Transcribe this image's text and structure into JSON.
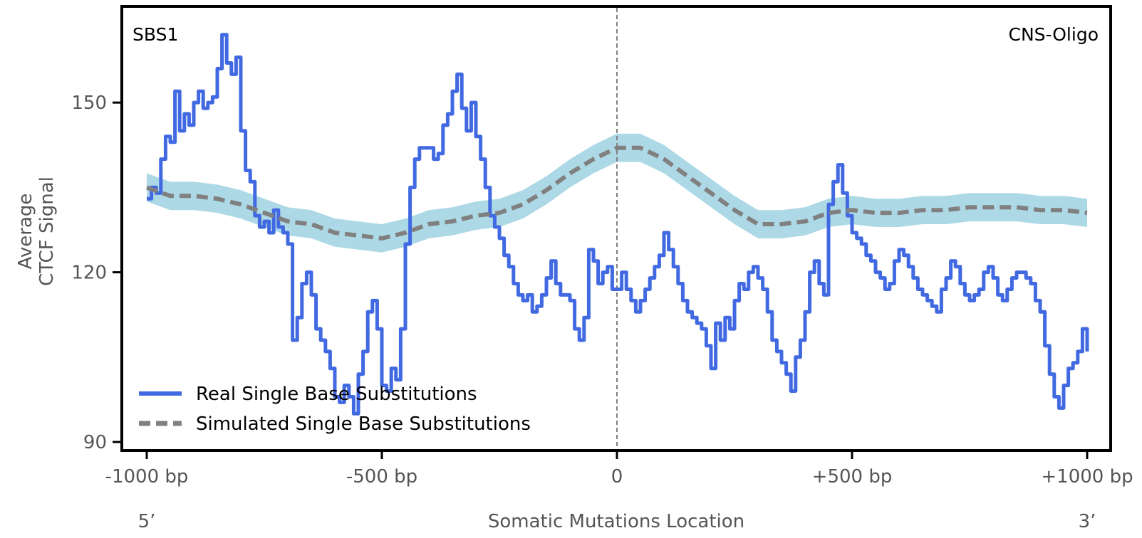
{
  "chart_data": {
    "type": "line",
    "xlabel": "Somatic Mutations Location",
    "ylabel_lines": [
      "Average",
      "CTCF Signal"
    ],
    "corner_left": "SBS1",
    "corner_right": "CNS-Oligo",
    "xlim": [
      -1000,
      1000
    ],
    "ylim": [
      88.5,
      167
    ],
    "xticks": [
      -1000,
      -500,
      0,
      500,
      1000
    ],
    "xtick_labels": [
      "-1000 bp",
      "-500 bp",
      "0",
      "+500 bp",
      "+1000 bp"
    ],
    "yticks": [
      90,
      120,
      150
    ],
    "ytick_labels": [
      "90",
      "120",
      "150"
    ],
    "end_labels": [
      "5’",
      "3’"
    ],
    "grid": false,
    "center_line_x": 0,
    "legend_position": "lower-left",
    "colors": {
      "real": "#4169e1",
      "simulated": "#808080",
      "band": "#add8e6",
      "center_line": "#808080"
    },
    "series": [
      {
        "name": "Real Single Base Substitutions",
        "style": "solid",
        "x": [
          -1000,
          -990,
          -980,
          -970,
          -960,
          -950,
          -940,
          -930,
          -920,
          -910,
          -900,
          -890,
          -880,
          -870,
          -860,
          -850,
          -840,
          -830,
          -820,
          -810,
          -800,
          -790,
          -780,
          -770,
          -760,
          -750,
          -740,
          -730,
          -720,
          -710,
          -700,
          -690,
          -680,
          -670,
          -660,
          -650,
          -640,
          -630,
          -620,
          -610,
          -600,
          -590,
          -580,
          -570,
          -560,
          -550,
          -540,
          -530,
          -520,
          -510,
          -500,
          -490,
          -480,
          -470,
          -460,
          -450,
          -440,
          -430,
          -420,
          -410,
          -400,
          -390,
          -380,
          -370,
          -360,
          -350,
          -340,
          -330,
          -320,
          -310,
          -300,
          -290,
          -280,
          -270,
          -260,
          -250,
          -240,
          -230,
          -220,
          -210,
          -200,
          -190,
          -180,
          -170,
          -160,
          -150,
          -140,
          -130,
          -120,
          -110,
          -100,
          -90,
          -80,
          -70,
          -60,
          -50,
          -40,
          -30,
          -20,
          -10,
          0,
          10,
          20,
          30,
          40,
          50,
          60,
          70,
          80,
          90,
          100,
          110,
          120,
          130,
          140,
          150,
          160,
          170,
          180,
          190,
          200,
          210,
          220,
          230,
          240,
          250,
          260,
          270,
          280,
          290,
          300,
          310,
          320,
          330,
          340,
          350,
          360,
          370,
          380,
          390,
          400,
          410,
          420,
          430,
          440,
          450,
          460,
          470,
          480,
          490,
          500,
          510,
          520,
          530,
          540,
          550,
          560,
          570,
          580,
          590,
          600,
          610,
          620,
          630,
          640,
          650,
          660,
          670,
          680,
          690,
          700,
          710,
          720,
          730,
          740,
          750,
          760,
          770,
          780,
          790,
          800,
          810,
          820,
          830,
          840,
          850,
          860,
          870,
          880,
          890,
          900,
          910,
          920,
          930,
          940,
          950,
          960,
          970,
          980,
          990,
          1000
        ],
        "y": [
          133,
          135,
          134,
          140,
          144,
          143,
          152,
          145,
          148,
          146,
          150,
          152,
          149,
          150,
          151,
          156,
          162,
          157,
          155,
          158,
          145,
          138,
          136,
          130,
          128,
          129,
          127,
          131,
          128,
          127,
          125,
          108,
          112,
          118,
          120,
          116,
          110,
          108,
          106,
          103,
          98,
          97,
          100,
          98,
          95,
          102,
          106,
          113,
          115,
          110,
          100,
          99,
          103,
          101,
          110,
          125,
          135,
          140,
          142,
          142,
          142,
          140,
          141,
          146,
          148,
          152,
          155,
          149,
          145,
          150,
          144,
          140,
          135,
          130,
          128,
          126,
          123,
          121,
          118,
          116,
          115,
          116,
          113,
          114,
          116,
          119,
          122,
          118,
          116,
          116,
          115,
          110,
          108,
          112,
          124,
          122,
          118,
          120,
          121,
          117,
          117,
          120,
          117,
          115,
          113,
          115,
          117,
          119,
          121,
          123,
          127,
          124,
          121,
          118,
          115,
          113,
          112,
          111,
          110,
          107,
          103,
          111,
          108,
          112,
          110,
          115,
          118,
          117,
          120,
          121,
          119,
          117,
          113,
          108,
          106,
          104,
          102,
          99,
          105,
          108,
          113,
          120,
          122,
          118,
          116,
          132,
          136,
          139,
          134,
          130,
          127,
          126,
          125,
          123,
          122,
          120,
          119,
          117,
          118,
          122,
          124,
          123,
          121,
          119,
          117,
          116,
          115,
          114,
          113,
          117,
          119,
          122,
          121,
          118,
          116,
          115,
          116,
          117,
          120,
          121,
          119,
          116,
          115,
          117,
          119,
          120,
          120,
          119,
          118,
          115,
          113,
          107,
          102,
          98,
          96,
          100,
          103,
          104,
          106,
          110,
          106
        ]
      },
      {
        "name": "Simulated Single Base Substitutions",
        "style": "dashed",
        "x": [
          -1000,
          -950,
          -900,
          -850,
          -800,
          -750,
          -700,
          -650,
          -600,
          -550,
          -500,
          -450,
          -400,
          -350,
          -300,
          -250,
          -200,
          -150,
          -100,
          -50,
          0,
          50,
          100,
          150,
          200,
          250,
          300,
          350,
          400,
          450,
          500,
          550,
          600,
          650,
          700,
          750,
          800,
          850,
          900,
          950,
          1000
        ],
        "y": [
          135,
          133.5,
          133.5,
          133,
          132,
          130.5,
          129,
          128.5,
          127,
          126.5,
          126,
          127,
          128.5,
          129,
          130,
          130.5,
          132,
          134.5,
          137.5,
          140,
          142,
          142,
          140,
          137,
          134,
          131,
          128.5,
          128.5,
          129,
          130.5,
          131,
          130.5,
          130.5,
          131,
          131,
          131.5,
          131.5,
          131.5,
          131,
          131,
          130.5
        ],
        "band_half_width": 2.5
      }
    ]
  }
}
